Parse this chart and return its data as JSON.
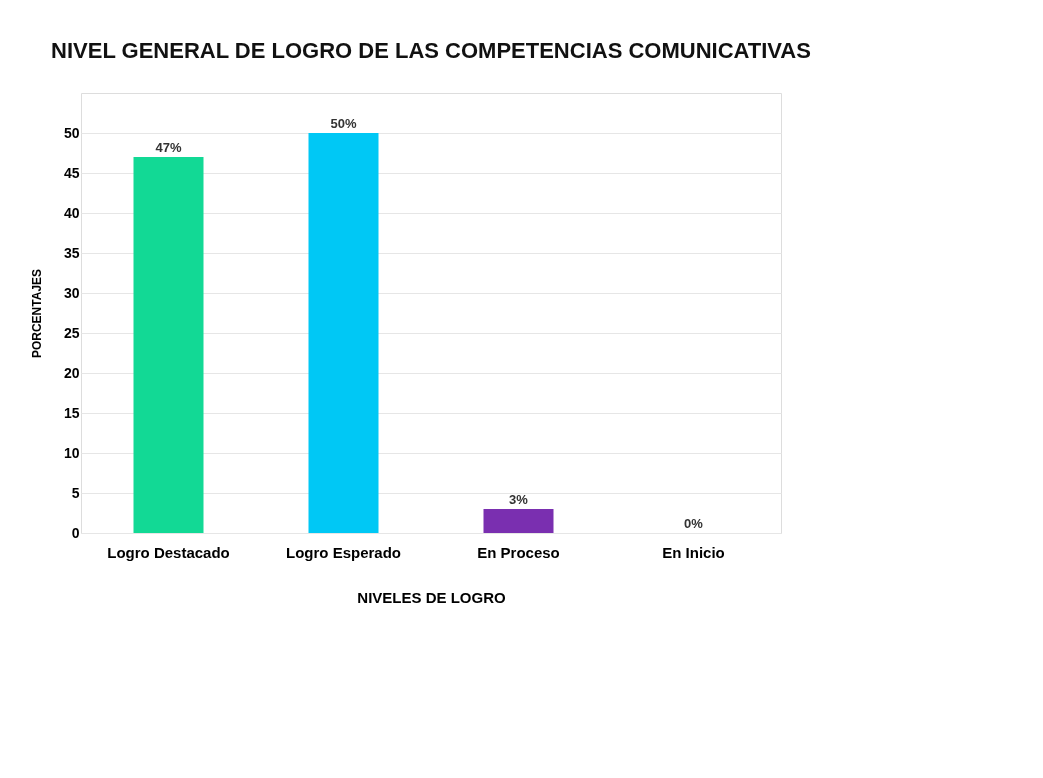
{
  "chart_data": {
    "type": "bar",
    "title": "NIVEL GENERAL DE LOGRO DE LAS COMPETENCIAS COMUNICATIVAS",
    "xlabel": "NIVELES DE LOGRO",
    "ylabel": "PORCENTAJES",
    "categories": [
      "Logro Destacado",
      "Logro Esperado",
      "En Proceso",
      "En Inicio"
    ],
    "values": [
      47,
      50,
      3,
      0
    ],
    "colors": [
      "#12d995",
      "#00c8f5",
      "#7a2fb0",
      "#c9a227"
    ],
    "value_labels": [
      "47%",
      "50%",
      "3%",
      "0%"
    ],
    "ylim": [
      0,
      55
    ],
    "yticks": [
      0,
      5,
      10,
      15,
      20,
      25,
      30,
      35,
      40,
      45,
      50
    ],
    "grid": "y"
  }
}
